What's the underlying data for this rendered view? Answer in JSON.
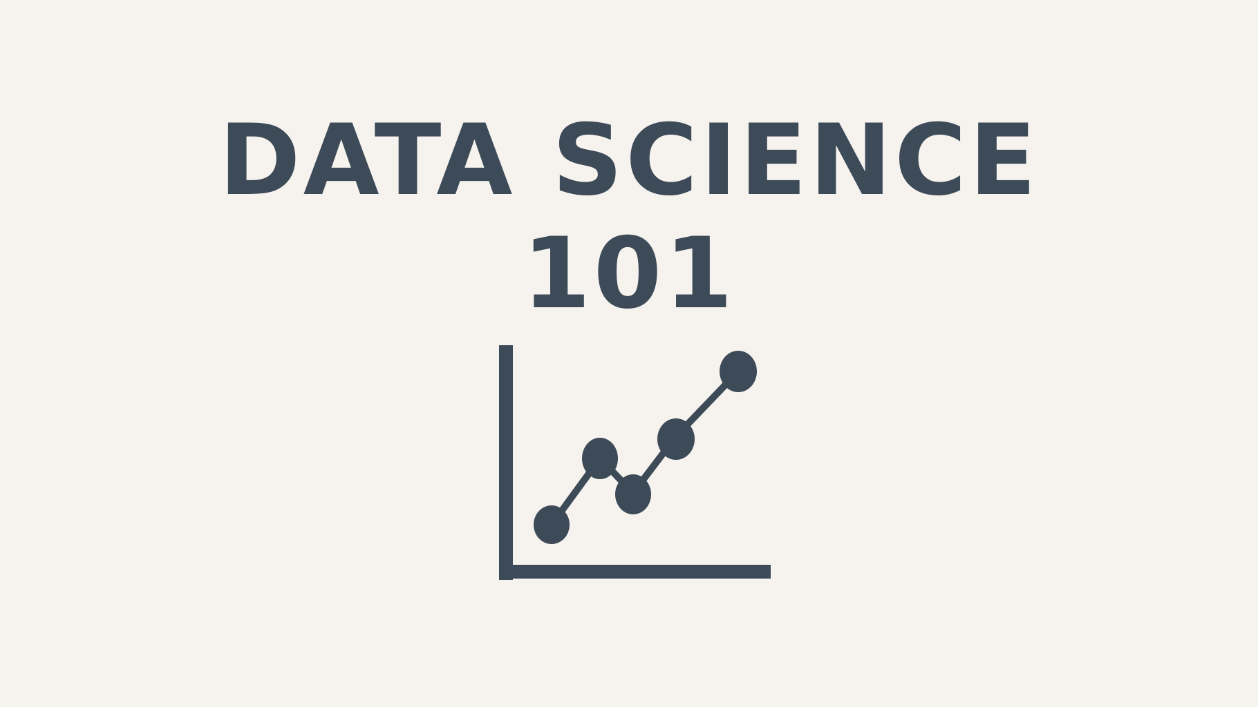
{
  "title": {
    "line1": "DATA SCIENCE",
    "line2": "101"
  },
  "icon": "line-chart-icon",
  "colors": {
    "background": "#f6f3ef",
    "ink": "#3d4a57"
  }
}
